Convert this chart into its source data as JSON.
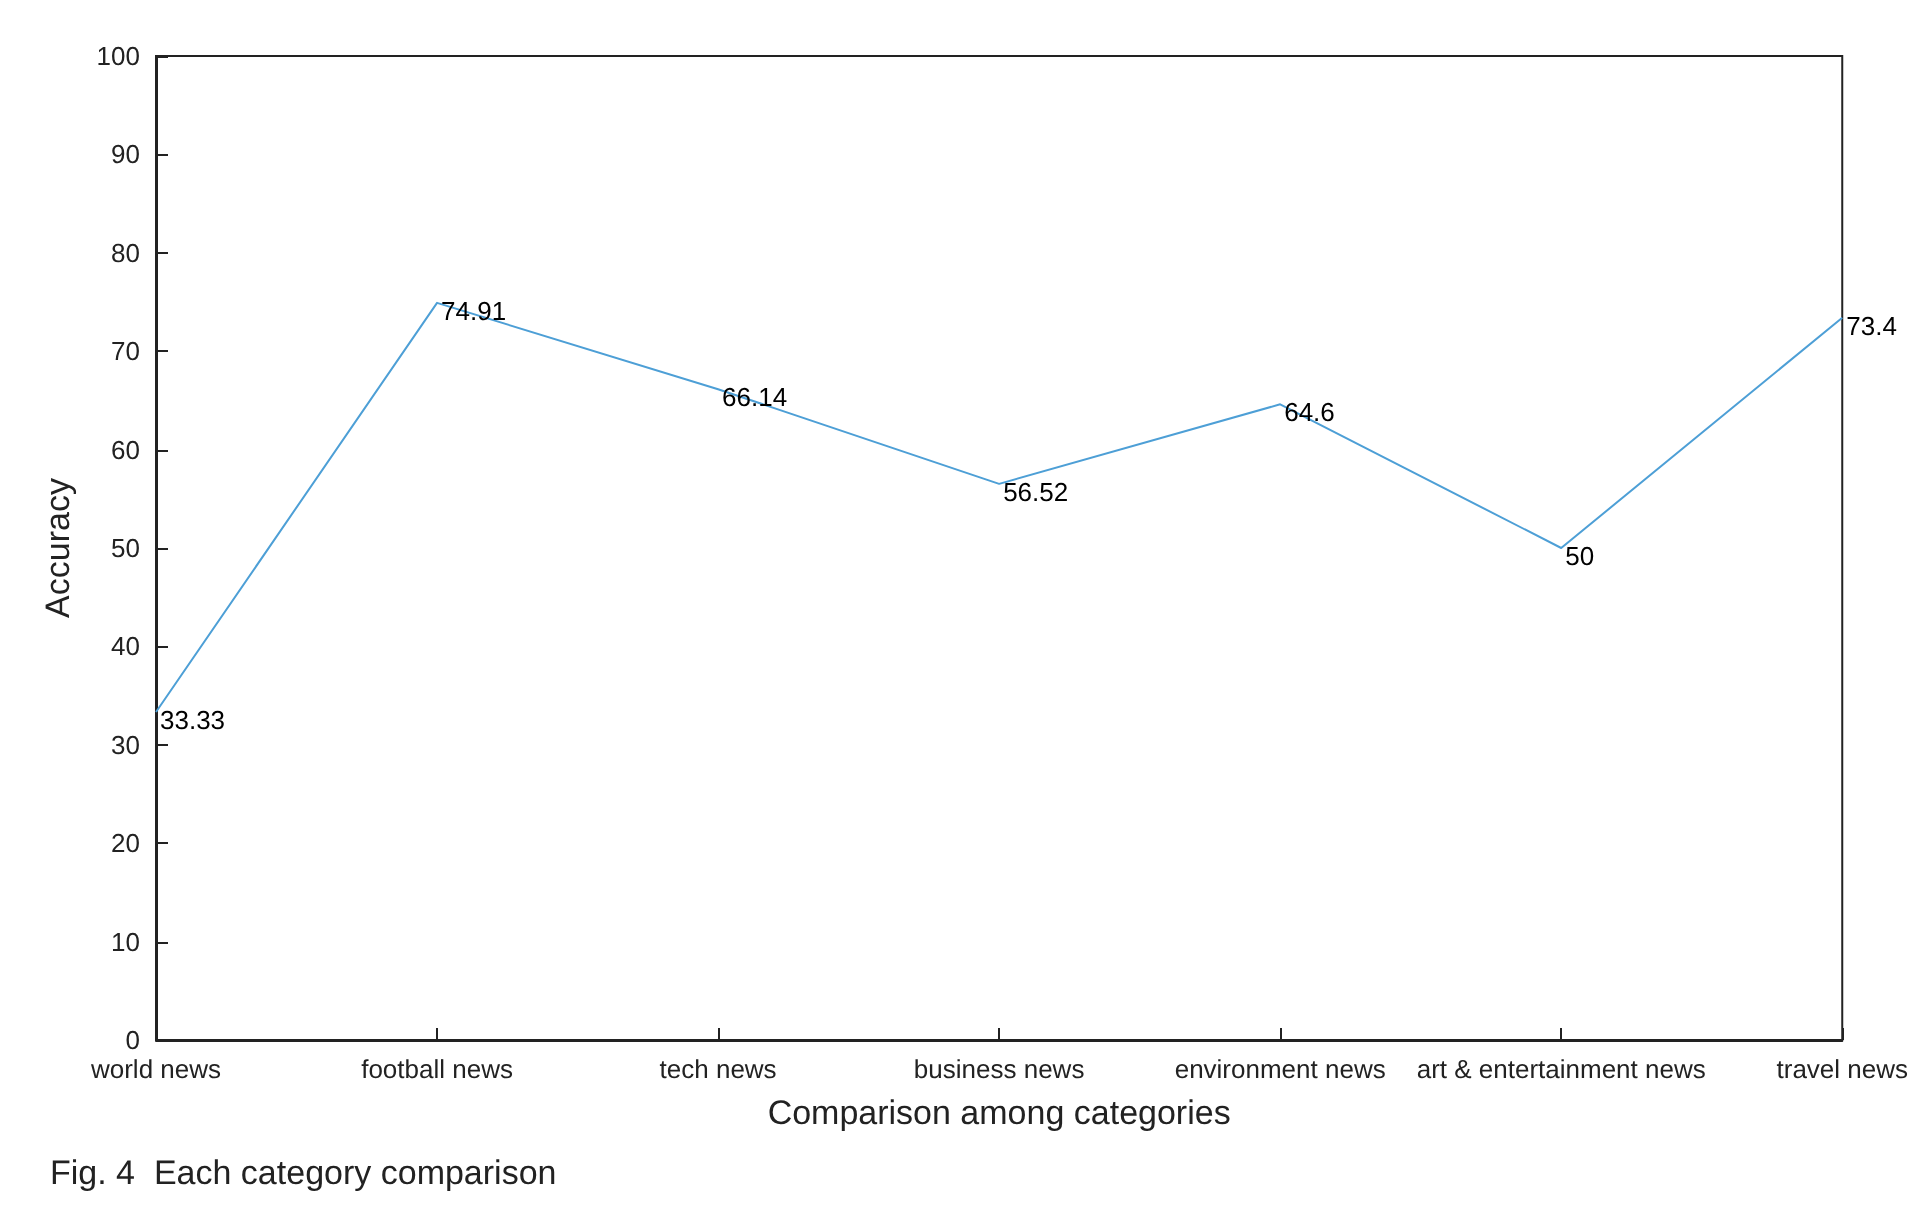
{
  "chart_data": {
    "type": "line",
    "xlabel": "Comparison among categories",
    "ylabel": "Accuracy",
    "categories": [
      "world news",
      "football news",
      "tech news",
      "business news",
      "environment news",
      "art & entertainment news",
      "travel news"
    ],
    "values": [
      33.33,
      74.91,
      66.14,
      56.52,
      64.6,
      50,
      73.4
    ],
    "color": "#4d9fd6",
    "ylim": [
      0,
      100
    ],
    "yticks": [
      0,
      10,
      20,
      30,
      40,
      50,
      60,
      70,
      80,
      90,
      100
    ],
    "grid": false,
    "marker": "none",
    "line_style": "solid",
    "data_labels": true,
    "annotations": [
      "Fig. 4  Each category comparison"
    ]
  }
}
